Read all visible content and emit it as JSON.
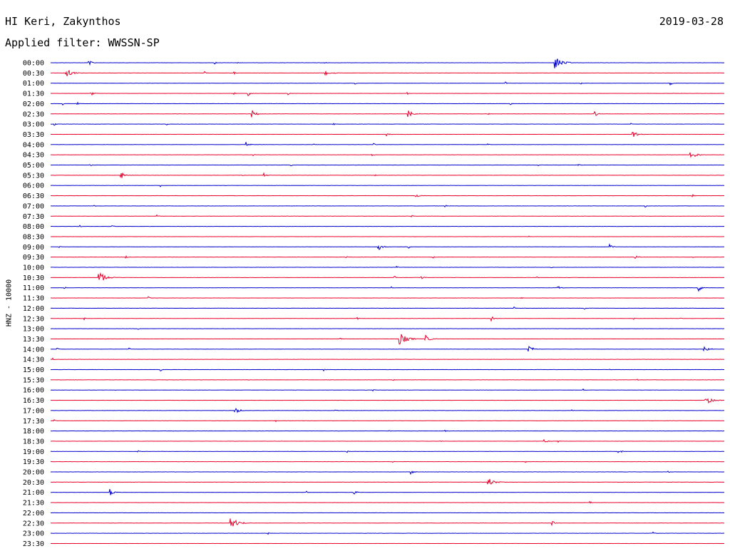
{
  "header": {
    "station": "HI Keri, Zakynthos",
    "date": "2019-03-28",
    "filter": "Applied filter: WWSSN-SP"
  },
  "chart_data": {
    "type": "line",
    "title": "HI Keri, Zakynthos",
    "subtitle": "Applied filter: WWSSN-SP",
    "ylabel": "HNZ - 10000",
    "colors": [
      "#0000cc",
      "#e8002a"
    ],
    "rows": [
      {
        "label": "00:00",
        "events": [
          [
            0.057,
            2
          ],
          [
            0.244,
            1
          ],
          [
            0.278,
            1
          ],
          [
            0.407,
            1
          ],
          [
            0.749,
            5
          ]
        ]
      },
      {
        "label": "00:30",
        "events": [
          [
            0.023,
            4
          ],
          [
            0.229,
            1
          ],
          [
            0.273,
            1
          ],
          [
            0.408,
            2
          ],
          [
            0.421,
            1
          ]
        ]
      },
      {
        "label": "01:00",
        "events": [
          [
            0.452,
            1
          ],
          [
            0.676,
            1
          ],
          [
            0.787,
            1
          ],
          [
            0.919,
            2
          ]
        ]
      },
      {
        "label": "01:30",
        "events": [
          [
            0.06,
            2
          ],
          [
            0.272,
            1
          ],
          [
            0.293,
            2
          ],
          [
            0.353,
            1
          ],
          [
            0.53,
            1
          ]
        ]
      },
      {
        "label": "02:00",
        "events": [
          [
            0.018,
            1
          ],
          [
            0.04,
            1
          ],
          [
            0.683,
            1
          ]
        ]
      },
      {
        "label": "02:30",
        "events": [
          [
            0.299,
            3
          ],
          [
            0.531,
            3
          ],
          [
            0.808,
            2
          ],
          [
            0.65,
            1
          ]
        ]
      },
      {
        "label": "03:00",
        "events": [
          [
            0.006,
            1
          ],
          [
            0.172,
            1
          ],
          [
            0.42,
            1
          ],
          [
            0.861,
            1
          ]
        ]
      },
      {
        "label": "03:30",
        "events": [
          [
            0.498,
            2
          ],
          [
            0.864,
            3
          ]
        ]
      },
      {
        "label": "04:00",
        "events": [
          [
            0.291,
            2
          ],
          [
            0.389,
            1
          ],
          [
            0.48,
            1
          ],
          [
            0.649,
            1
          ]
        ]
      },
      {
        "label": "04:30",
        "events": [
          [
            0.3,
            1
          ],
          [
            0.477,
            1
          ],
          [
            0.949,
            4
          ]
        ]
      },
      {
        "label": "05:00",
        "events": [
          [
            0.059,
            1
          ],
          [
            0.357,
            1
          ],
          [
            0.724,
            1
          ],
          [
            0.783,
            1
          ]
        ]
      },
      {
        "label": "05:30",
        "events": [
          [
            0.104,
            3
          ],
          [
            0.284,
            1
          ],
          [
            0.317,
            2
          ],
          [
            0.482,
            1
          ]
        ]
      },
      {
        "label": "06:00",
        "events": [
          [
            0.106,
            1
          ],
          [
            0.163,
            1
          ]
        ]
      },
      {
        "label": "06:30",
        "events": [
          [
            0.542,
            2
          ],
          [
            0.953,
            1
          ]
        ]
      },
      {
        "label": "07:00",
        "events": [
          [
            0.065,
            1
          ],
          [
            0.586,
            1
          ],
          [
            0.883,
            1
          ]
        ]
      },
      {
        "label": "07:30",
        "events": [
          [
            0.158,
            1
          ],
          [
            0.536,
            1
          ]
        ]
      },
      {
        "label": "08:00",
        "events": [
          [
            0.044,
            1
          ],
          [
            0.092,
            1
          ]
        ]
      },
      {
        "label": "08:30",
        "events": [
          [
            0.709,
            1
          ]
        ]
      },
      {
        "label": "09:00",
        "events": [
          [
            0.012,
            1
          ],
          [
            0.486,
            3
          ],
          [
            0.532,
            1
          ],
          [
            0.83,
            2
          ]
        ]
      },
      {
        "label": "09:30",
        "events": [
          [
            0.112,
            1
          ],
          [
            0.439,
            1
          ],
          [
            0.568,
            1
          ],
          [
            0.867,
            2
          ],
          [
            0.953,
            1
          ]
        ]
      },
      {
        "label": "10:00",
        "events": [
          [
            0.514,
            1
          ],
          [
            0.743,
            1
          ]
        ]
      },
      {
        "label": "10:30",
        "events": [
          [
            0.071,
            5
          ],
          [
            0.511,
            1
          ],
          [
            0.55,
            2
          ],
          [
            0.722,
            1
          ]
        ]
      },
      {
        "label": "11:00",
        "events": [
          [
            0.021,
            1
          ],
          [
            0.506,
            1
          ],
          [
            0.753,
            2
          ],
          [
            0.961,
            3
          ]
        ]
      },
      {
        "label": "11:30",
        "events": [
          [
            0.146,
            1
          ],
          [
            0.698,
            1
          ]
        ]
      },
      {
        "label": "12:00",
        "events": [
          [
            0.688,
            1
          ],
          [
            0.792,
            1
          ]
        ]
      },
      {
        "label": "12:30",
        "events": [
          [
            0.05,
            1
          ],
          [
            0.456,
            1
          ],
          [
            0.655,
            2
          ],
          [
            0.865,
            1
          ],
          [
            0.935,
            1
          ]
        ]
      },
      {
        "label": "13:00",
        "events": [
          [
            0.13,
            1
          ]
        ]
      },
      {
        "label": "13:30",
        "events": [
          [
            0.43,
            1
          ],
          [
            0.518,
            5
          ],
          [
            0.556,
            3
          ]
        ]
      },
      {
        "label": "14:00",
        "events": [
          [
            0.01,
            1
          ],
          [
            0.117,
            1
          ],
          [
            0.71,
            3
          ],
          [
            0.97,
            3
          ]
        ]
      },
      {
        "label": "14:30",
        "events": [
          [
            0.004,
            1
          ],
          [
            0.512,
            1
          ]
        ]
      },
      {
        "label": "15:00",
        "events": [
          [
            0.164,
            1
          ],
          [
            0.406,
            1
          ],
          [
            0.83,
            1
          ]
        ]
      },
      {
        "label": "15:30",
        "events": [
          [
            0.293,
            1
          ],
          [
            0.508,
            1
          ],
          [
            0.87,
            1
          ]
        ]
      },
      {
        "label": "16:00",
        "events": [
          [
            0.479,
            1
          ],
          [
            0.791,
            1
          ]
        ]
      },
      {
        "label": "16:30",
        "events": [
          [
            0.972,
            4
          ]
        ]
      },
      {
        "label": "17:00",
        "events": [
          [
            0.274,
            3
          ],
          [
            0.423,
            1
          ],
          [
            0.774,
            1
          ]
        ]
      },
      {
        "label": "17:30",
        "events": [
          [
            0.005,
            1
          ],
          [
            0.334,
            1
          ]
        ]
      },
      {
        "label": "18:00",
        "events": [
          [
            0.503,
            1
          ],
          [
            0.586,
            1
          ]
        ]
      },
      {
        "label": "18:30",
        "events": [
          [
            0.578,
            1
          ],
          [
            0.733,
            2
          ],
          [
            0.753,
            1
          ]
        ]
      },
      {
        "label": "19:00",
        "events": [
          [
            0.13,
            1
          ],
          [
            0.44,
            1
          ],
          [
            0.843,
            2
          ]
        ]
      },
      {
        "label": "19:30",
        "events": [
          [
            0.507,
            1
          ],
          [
            0.705,
            1
          ]
        ]
      },
      {
        "label": "20:00",
        "events": [
          [
            0.535,
            2
          ],
          [
            0.917,
            1
          ]
        ]
      },
      {
        "label": "20:30",
        "events": [
          [
            0.649,
            4
          ]
        ]
      },
      {
        "label": "21:00",
        "events": [
          [
            0.088,
            3
          ],
          [
            0.38,
            1
          ],
          [
            0.45,
            2
          ]
        ]
      },
      {
        "label": "21:30",
        "events": [
          [
            0.416,
            1
          ],
          [
            0.801,
            1
          ]
        ]
      },
      {
        "label": "22:00",
        "events": []
      },
      {
        "label": "22:30",
        "events": [
          [
            0.267,
            5
          ],
          [
            0.744,
            2
          ]
        ]
      },
      {
        "label": "23:00",
        "events": [
          [
            0.323,
            1
          ],
          [
            0.894,
            1
          ]
        ]
      },
      {
        "label": "23:30",
        "events": []
      }
    ]
  }
}
